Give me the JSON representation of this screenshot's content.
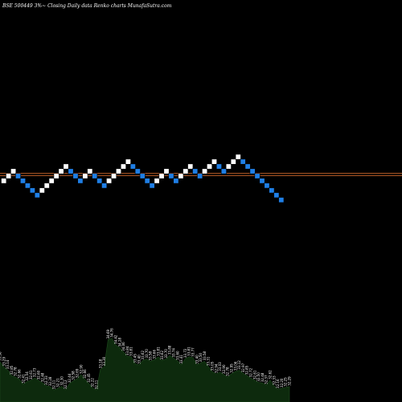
{
  "chart_data": {
    "type": "renko",
    "title": "BSE 500449 3%~  Closing Daily data  Renko  charts MunafaSutra.com",
    "colors": {
      "background": "#000000",
      "up_brick": "#ffffff",
      "down_brick": "#1f7fe6",
      "brick_border": "#000000",
      "reference_line": "#c0602a",
      "volume_fill": "#0d2a0d",
      "label": "#ffffff"
    },
    "renko_directions": [
      "up",
      "up",
      "up",
      "down",
      "down",
      "down",
      "down",
      "down",
      "up",
      "up",
      "up",
      "up",
      "up",
      "up",
      "down",
      "down",
      "down",
      "up",
      "up",
      "down",
      "down",
      "down",
      "up",
      "up",
      "up",
      "up",
      "up",
      "down",
      "down",
      "down",
      "down",
      "down",
      "up",
      "up",
      "up",
      "down",
      "down",
      "up",
      "up",
      "up",
      "down",
      "down",
      "up",
      "up",
      "up",
      "down",
      "down",
      "up",
      "up",
      "up",
      "down",
      "down",
      "down",
      "down",
      "down",
      "down",
      "down",
      "down",
      "down"
    ],
    "renko_levels": [
      4,
      5,
      6,
      5,
      4,
      3,
      2,
      1,
      2,
      3,
      4,
      5,
      6,
      7,
      6,
      5,
      4,
      5,
      6,
      5,
      4,
      3,
      4,
      5,
      6,
      7,
      8,
      7,
      6,
      5,
      4,
      3,
      4,
      5,
      6,
      5,
      4,
      5,
      6,
      7,
      6,
      5,
      6,
      7,
      8,
      7,
      6,
      7,
      8,
      9,
      8,
      7,
      6,
      5,
      4,
      3,
      2,
      1,
      0
    ],
    "reference_levels": [
      5.5,
      5.0
    ],
    "volume_labels": [
      "33.56",
      "33.29",
      "33.14",
      "32.85",
      "32.78",
      "32.66",
      "32.41",
      "32.54",
      "32.61",
      "32.73",
      "32.60",
      "32.48",
      "32.33",
      "32.28",
      "32.11",
      "32.21",
      "32.30",
      "32.12",
      "32.44",
      "32.58",
      "32.69",
      "32.90",
      "32.66",
      "32.45",
      "32.22",
      "32.11",
      "33.18",
      "33.30",
      "34.69",
      "34.76",
      "34.42",
      "34.28",
      "34.06",
      "33.84",
      "33.81",
      "33.45",
      "33.40",
      "33.62",
      "33.70",
      "33.58",
      "33.66",
      "33.81",
      "33.62",
      "33.70",
      "33.88",
      "33.74",
      "33.60",
      "33.41",
      "33.72",
      "33.81",
      "33.77",
      "33.40",
      "33.50",
      "33.58",
      "33.31",
      "33.05",
      "32.94",
      "33.03",
      "32.90",
      "32.78",
      "32.95",
      "33.06",
      "33.12",
      "32.97",
      "32.85",
      "32.72",
      "32.61",
      "32.50",
      "32.48",
      "32.37",
      "32.62",
      "32.33",
      "32.16",
      "32.20",
      "32.25",
      "32.29"
    ],
    "volume_values": [
      33.56,
      33.29,
      33.14,
      32.85,
      32.78,
      32.66,
      32.41,
      32.54,
      32.61,
      32.73,
      32.6,
      32.48,
      32.33,
      32.28,
      32.11,
      32.21,
      32.3,
      32.12,
      32.44,
      32.58,
      32.69,
      32.9,
      32.66,
      32.45,
      32.22,
      32.11,
      33.18,
      33.3,
      34.69,
      34.76,
      34.42,
      34.28,
      34.06,
      33.84,
      33.81,
      33.45,
      33.4,
      33.62,
      33.7,
      33.58,
      33.66,
      33.81,
      33.62,
      33.7,
      33.88,
      33.74,
      33.6,
      33.41,
      33.72,
      33.81,
      33.77,
      33.4,
      33.5,
      33.58,
      33.31,
      33.05,
      32.94,
      33.03,
      32.9,
      32.78,
      32.95,
      33.06,
      33.12,
      32.97,
      32.85,
      32.72,
      32.61,
      32.5,
      32.48,
      32.37,
      32.62,
      32.33,
      32.16,
      32.2,
      32.25,
      32.29
    ]
  }
}
